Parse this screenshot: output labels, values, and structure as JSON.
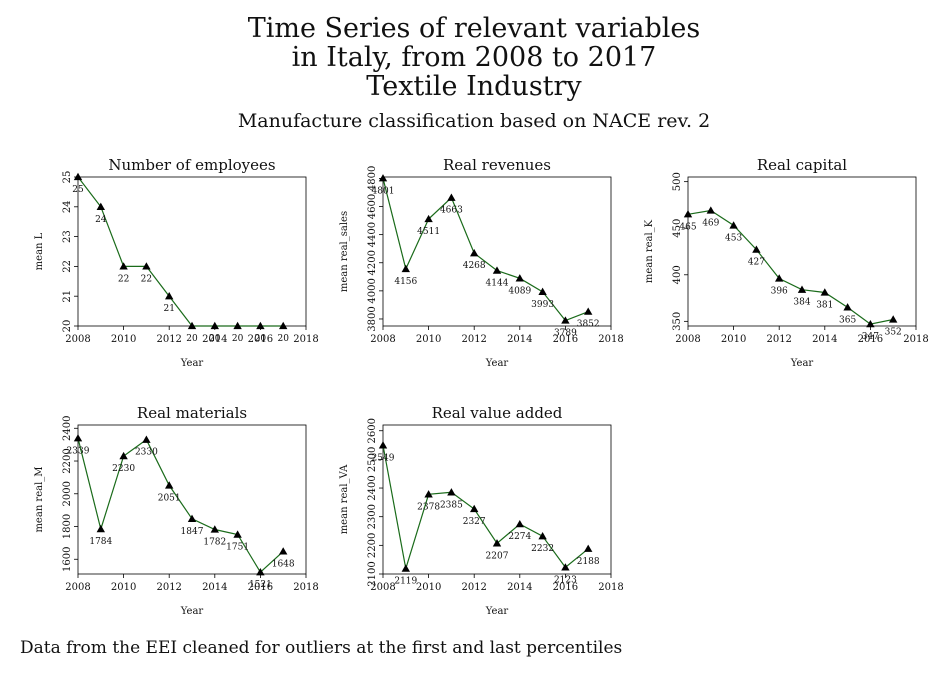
{
  "title_lines": [
    "Time Series of relevant variables",
    "in Italy, from 2008 to 2017",
    "Textile Industry"
  ],
  "subtitle": "Manufacture classification based on NACE rev. 2",
  "note": "Data from the EEI cleaned for outliers at the first and last percentiles",
  "colors": {
    "line": "#1a6b1a",
    "marker": "#000000",
    "frame": "#000000"
  },
  "chart_data": [
    {
      "type": "line",
      "title": "Number of employees",
      "xlabel": "Year",
      "ylabel": "mean L",
      "x": [
        2008,
        2009,
        2010,
        2011,
        2012,
        2013,
        2014,
        2015,
        2016,
        2017
      ],
      "values": [
        25,
        24,
        22,
        22,
        21,
        20,
        20,
        20,
        20,
        20
      ],
      "data_labels": [
        "25",
        "24",
        "22",
        "22",
        "21",
        "20",
        "20",
        "20",
        "20",
        "20"
      ],
      "xlim": [
        2008,
        2018
      ],
      "ylim": [
        20,
        25
      ],
      "xticks": [
        2008,
        2010,
        2012,
        2014,
        2016,
        2018
      ],
      "yticks": [
        20,
        21,
        22,
        23,
        24,
        25
      ],
      "marker": "triangle"
    },
    {
      "type": "line",
      "title": "Real revenues",
      "xlabel": "Year",
      "ylabel": "mean real_sales",
      "x": [
        2008,
        2009,
        2010,
        2011,
        2012,
        2013,
        2014,
        2015,
        2016,
        2017
      ],
      "values": [
        4801,
        4156,
        4511,
        4663,
        4268,
        4144,
        4089,
        3993,
        3789,
        3852
      ],
      "data_labels": [
        "4801",
        "4156",
        "4511",
        "4663",
        "4268",
        "4144",
        "4089",
        "3993",
        "3789",
        "3852"
      ],
      "xlim": [
        2008,
        2018
      ],
      "ylim": [
        3750,
        4810
      ],
      "xticks": [
        2008,
        2010,
        2012,
        2014,
        2016,
        2018
      ],
      "yticks": [
        3800,
        4000,
        4200,
        4400,
        4600,
        4800
      ],
      "marker": "triangle"
    },
    {
      "type": "line",
      "title": "Real capital",
      "xlabel": "Year",
      "ylabel": "mean real_K",
      "x": [
        2008,
        2009,
        2010,
        2011,
        2012,
        2013,
        2014,
        2015,
        2016,
        2017
      ],
      "values": [
        465,
        469,
        453,
        427,
        396,
        384,
        381,
        365,
        347,
        352
      ],
      "data_labels": [
        "465",
        "469",
        "453",
        "427",
        "396",
        "384",
        "381",
        "365",
        "347",
        "352"
      ],
      "xlim": [
        2008,
        2018
      ],
      "ylim": [
        345,
        505
      ],
      "xticks": [
        2008,
        2010,
        2012,
        2014,
        2016,
        2018
      ],
      "yticks": [
        350,
        400,
        450,
        500
      ],
      "marker": "triangle"
    },
    {
      "type": "line",
      "title": "Real materials",
      "xlabel": "Year",
      "ylabel": "mean real_M",
      "x": [
        2008,
        2009,
        2010,
        2011,
        2012,
        2013,
        2014,
        2015,
        2016,
        2017
      ],
      "values": [
        2339,
        1784,
        2230,
        2330,
        2051,
        1847,
        1782,
        1751,
        1521,
        1648
      ],
      "data_labels": [
        "2339",
        "1784",
        "2230",
        "2330",
        "2051",
        "1847",
        "1782",
        "1751",
        "1521",
        "1648"
      ],
      "xlim": [
        2008,
        2018
      ],
      "ylim": [
        1510,
        2420
      ],
      "xticks": [
        2008,
        2010,
        2012,
        2014,
        2016,
        2018
      ],
      "yticks": [
        1600,
        1800,
        2000,
        2200,
        2400
      ],
      "marker": "triangle"
    },
    {
      "type": "line",
      "title": "Real value added",
      "xlabel": "Year",
      "ylabel": "mean real_VA",
      "x": [
        2008,
        2009,
        2010,
        2011,
        2012,
        2013,
        2014,
        2015,
        2016,
        2017
      ],
      "values": [
        2549,
        2119,
        2378,
        2385,
        2327,
        2207,
        2274,
        2232,
        2123,
        2188
      ],
      "data_labels": [
        "2549",
        "2119",
        "2378",
        "2385",
        "2327",
        "2207",
        "2274",
        "2232",
        "2123",
        "2188"
      ],
      "xlim": [
        2008,
        2018
      ],
      "ylim": [
        2100,
        2620
      ],
      "xticks": [
        2008,
        2010,
        2012,
        2014,
        2016,
        2018
      ],
      "yticks": [
        2100,
        2200,
        2300,
        2400,
        2500,
        2600
      ],
      "marker": "triangle"
    }
  ]
}
